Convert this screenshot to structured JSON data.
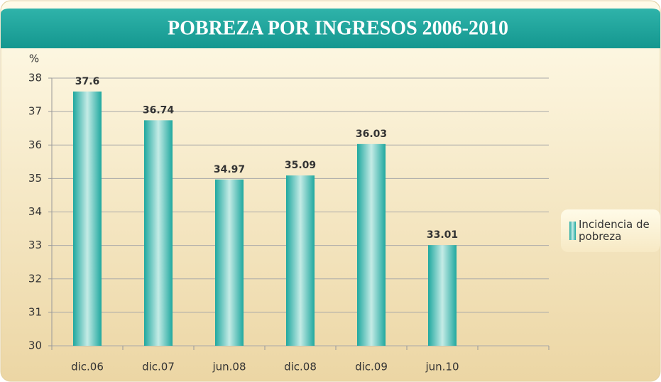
{
  "chart_data": {
    "type": "bar",
    "title": "POBREZA POR INGRESOS 2006-2010",
    "y_label": "%",
    "categories": [
      "dic.06",
      "dic.07",
      "jun.08",
      "dic.08",
      "dic.09",
      "jun.10",
      null
    ],
    "series": [
      {
        "name": "Incidencia de pobreza",
        "color": "#1fa89f",
        "values": [
          37.6,
          36.74,
          34.97,
          35.09,
          36.03,
          33.01,
          null
        ]
      }
    ],
    "ylim": [
      30,
      38
    ],
    "yticks": [
      30,
      31,
      32,
      33,
      34,
      35,
      36,
      37,
      38
    ],
    "grid": true,
    "legend": "right"
  }
}
